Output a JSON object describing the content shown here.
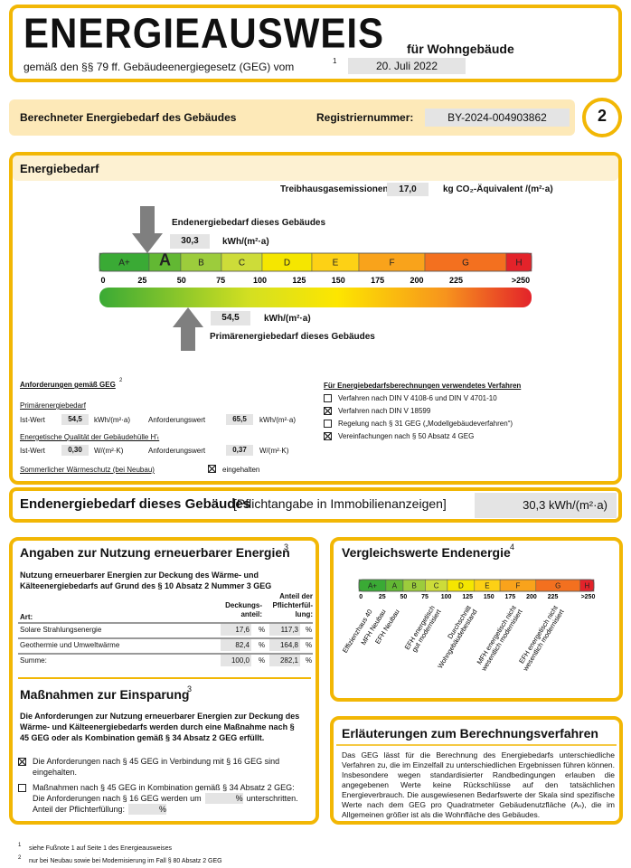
{
  "header": {
    "title": "ENERGIEAUSWEIS",
    "subtitle": "für Wohngebäude",
    "law": "gemäß den §§ 79 ff. Gebäudeenergiegesetz (GEG) vom",
    "law_sup": "1",
    "date": "20. Juli 2022"
  },
  "bar": {
    "label": "Berechneter Energiebedarf des Gebäudes",
    "reg_label": "Registriernummer:",
    "reg_number": "BY-2024-004903862",
    "page": "2"
  },
  "energiebedarf": {
    "title": "Energiebedarf",
    "ghg_label": "Treibhausgasemissionen",
    "ghg_value": "17,0",
    "ghg_unit": "kg CO₂-Äquivalent /(m²·a)",
    "end_label": "Endenergiebedarf dieses Gebäudes",
    "end_value": "30,3",
    "end_unit": "kWh/(m²·a)",
    "classes": [
      "A+",
      "A",
      "B",
      "C",
      "D",
      "E",
      "F",
      "G",
      "H"
    ],
    "scale": [
      "0",
      "25",
      "50",
      "75",
      "100",
      "125",
      "150",
      "175",
      "200",
      "225",
      ">250"
    ],
    "primary_value": "54,5",
    "primary_unit": "kWh/(m²·a)",
    "primary_label": "Primärenergiebedarf dieses Gebäudes"
  },
  "requirements": {
    "title": "Anforderungen gemäß GEG",
    "title_sup": "2",
    "primary_heading": "Primärenergiebedarf",
    "rows": [
      [
        "Ist-Wert",
        "54,5",
        "kWh/(m²·a)",
        "Anforderungswert",
        "65,5",
        "kWh/(m²·a)"
      ],
      [
        "Ist-Wert",
        "0,30",
        "W/(m²·K)",
        "Anforderungswert",
        "0,37",
        "W/(m²·K)"
      ]
    ],
    "envelope_heading": "Energetische Qualität der Gebäudehülle H'ₜ",
    "summer_label": "Sommerlicher Wärmeschutz (bei Neubau)",
    "summer_checked": true,
    "summer_text": "eingehalten"
  },
  "methods": {
    "title": "Für Energiebedarfsberechnungen verwendetes Verfahren",
    "items": [
      {
        "checked": false,
        "text": "Verfahren nach DIN V 4108-6 und DIN V 4701-10"
      },
      {
        "checked": true,
        "text": "Verfahren nach DIN V 18599"
      },
      {
        "checked": false,
        "text": "Regelung nach § 31 GEG („Modellgebäudeverfahren“)"
      },
      {
        "checked": true,
        "text": "Vereinfachungen nach § 50 Absatz 4 GEG"
      }
    ]
  },
  "end_band": {
    "label": "Endenergiebedarf dieses Gebäudes",
    "note": "[Pflichtangabe in Immobilienanzeigen]",
    "value": "30,3 kWh/(m²·a)"
  },
  "renewable": {
    "title": "Angaben zur Nutzung erneuerbarer Energien",
    "title_sup": "3",
    "intro": "Nutzung erneuerbarer Energien zur Deckung des Wärme- und Kälteenergiebedarfs auf Grund des § 10 Absatz 2 Nummer 3 GEG",
    "headers": [
      "Art:",
      "Deckungs-anteil:",
      "Anteil der Pflichterfül-lung:"
    ],
    "rows": [
      [
        "Solare Strahlungsenergie",
        "17,6",
        "%",
        "117,3",
        "%"
      ],
      [
        "Geothermie und Umweltwärme",
        "82,4",
        "%",
        "164,8",
        "%"
      ],
      [
        "Summe:",
        "100,0",
        "%",
        "282,1",
        "%"
      ]
    ]
  },
  "measures": {
    "title": "Maßnahmen zur Einsparung",
    "title_sup": "3",
    "intro": "Die Anforderungen zur Nutzung erneuerbarer Energien zur Deckung des Wärme- und Kälteenergiebedarfs werden durch eine Maßnahme nach § 45 GEG oder als Kombination gemäß § 34 Absatz 2 GEG erfüllt.",
    "item1_checked": true,
    "item1": "Die Anforderungen nach § 45 GEG in Verbindung mit § 16 GEG sind eingehalten.",
    "item2_checked": false,
    "item2_a": "Maßnahmen nach § 45 GEG in Kombination gemäß § 34 Absatz 2 GEG: Die Anforderungen nach § 16 GEG werden um",
    "item2_pct1": "%",
    "item2_b": "unterschritten. Anteil der Pflichterfüllung:",
    "item2_pct2": "%"
  },
  "comparison": {
    "title": "Vergleichswerte Endenergie",
    "title_sup": "4",
    "classes": [
      "A+",
      "A",
      "B",
      "C",
      "D",
      "E",
      "F",
      "G",
      "H"
    ],
    "scale": [
      "0",
      "25",
      "50",
      "75",
      "100",
      "125",
      "150",
      "175",
      "200",
      "225",
      ">250"
    ],
    "references": [
      [
        "Effizienzhaus 40"
      ],
      [
        "MFH Neubau"
      ],
      [
        "EFH Neubau"
      ],
      [
        "EFH energetisch",
        "gut modernisiert"
      ],
      [
        "Durchschnitt",
        "Wohngebäudebestand"
      ],
      [
        "MFH energetisch nicht",
        "wesentlich modernisiert"
      ],
      [
        "EFH energetisch nicht",
        "wesentlich modernisiert"
      ]
    ]
  },
  "explanation": {
    "title": "Erläuterungen zum Berechnungsverfahren",
    "text": "Das GEG lässt für die Berechnung des Energiebedarfs unterschiedliche Verfahren zu, die im Einzelfall zu unterschiedlichen Ergebnissen führen können. Insbesondere wegen standardisierter Randbedingungen erlauben die angegebenen Werte keine Rückschlüsse auf den tatsächlichen Energieverbrauch. Die ausgewiesenen Bedarfswerte der Skala sind spezifische Werte nach dem GEG pro Quadratmeter Gebäudenutzfläche (Aₙ), die im Allgemeinen größer ist als die Wohnfläche des Gebäudes."
  },
  "footnotes": [
    [
      "1",
      "siehe Fußnote 1 auf Seite 1 des Energieausweises"
    ],
    [
      "2",
      "nur bei Neubau sowie bei Modernisierung im Fall § 80 Absatz 2 GEG"
    ]
  ]
}
